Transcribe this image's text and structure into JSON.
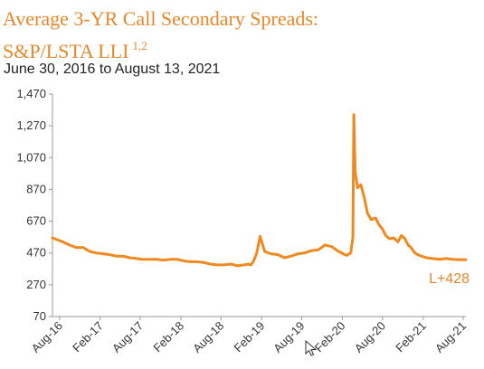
{
  "title": {
    "line1": "Average 3-YR Call Secondary Spreads:",
    "line2": "S&P/LSTA LLI",
    "superscript": "1,2"
  },
  "subtitle": "June 30, 2016 to August 13, 2021",
  "colors": {
    "series": "#f0891f",
    "title": "#e8862a",
    "axis": "#999999",
    "text": "#333333"
  },
  "chart_data": {
    "type": "line",
    "title": "Average 3-YR Call Secondary Spreads: S&P/LSTA LLI 1,2",
    "subtitle": "June 30, 2016 to August 13, 2021",
    "xlabel": "",
    "ylabel": "",
    "ylim": [
      70,
      1470
    ],
    "yticks": [
      70,
      270,
      470,
      670,
      870,
      1070,
      1270,
      1470
    ],
    "ytick_labels": [
      "70",
      "270",
      "470",
      "670",
      "870",
      "1,070",
      "1,270",
      "1,470"
    ],
    "xlim": [
      "2016-06-30",
      "2021-08-13"
    ],
    "xtick_labels": [
      "Aug-16",
      "Feb-17",
      "Aug-17",
      "Feb-18",
      "Aug-18",
      "Feb-19",
      "Aug-19",
      "Feb-20",
      "Aug-20",
      "Feb-21",
      "Aug-21"
    ],
    "xtick_dates": [
      "2016-08-01",
      "2017-02-01",
      "2017-08-01",
      "2018-02-01",
      "2018-08-01",
      "2019-02-01",
      "2019-08-01",
      "2020-02-01",
      "2020-08-01",
      "2021-02-01",
      "2021-08-01"
    ],
    "grid": false,
    "end_label": "L+428",
    "series": [
      {
        "color": "#f0891f",
        "x": [
          "2016-06-30",
          "2016-08-15",
          "2016-09-15",
          "2016-10-15",
          "2016-11-15",
          "2016-12-15",
          "2017-01-15",
          "2017-02-15",
          "2017-03-15",
          "2017-04-15",
          "2017-05-15",
          "2017-06-15",
          "2017-07-15",
          "2017-08-15",
          "2017-09-15",
          "2017-10-15",
          "2017-11-15",
          "2017-12-15",
          "2018-01-15",
          "2018-02-15",
          "2018-03-15",
          "2018-04-15",
          "2018-05-15",
          "2018-06-15",
          "2018-07-15",
          "2018-08-15",
          "2018-09-15",
          "2018-10-15",
          "2018-11-15",
          "2018-12-01",
          "2018-12-15",
          "2018-12-27",
          "2019-01-10",
          "2019-01-25",
          "2019-02-15",
          "2019-03-15",
          "2019-04-15",
          "2019-05-15",
          "2019-06-15",
          "2019-07-15",
          "2019-08-15",
          "2019-09-15",
          "2019-10-15",
          "2019-11-15",
          "2019-12-15",
          "2020-01-15",
          "2020-02-20",
          "2020-03-10",
          "2020-03-20",
          "2020-03-24",
          "2020-03-30",
          "2020-04-10",
          "2020-04-25",
          "2020-05-10",
          "2020-05-25",
          "2020-06-10",
          "2020-07-01",
          "2020-07-15",
          "2020-08-01",
          "2020-08-15",
          "2020-09-01",
          "2020-09-20",
          "2020-10-10",
          "2020-10-25",
          "2020-11-10",
          "2020-11-25",
          "2020-12-10",
          "2020-12-25",
          "2021-01-15",
          "2021-02-15",
          "2021-03-15",
          "2021-04-15",
          "2021-05-15",
          "2021-06-15",
          "2021-07-15",
          "2021-08-13"
        ],
        "y": [
          565,
          540,
          520,
          505,
          505,
          480,
          470,
          465,
          460,
          450,
          450,
          440,
          435,
          430,
          430,
          430,
          425,
          430,
          430,
          420,
          415,
          415,
          410,
          400,
          395,
          395,
          400,
          390,
          395,
          400,
          395,
          420,
          470,
          575,
          480,
          465,
          460,
          440,
          450,
          465,
          470,
          485,
          490,
          520,
          510,
          480,
          455,
          470,
          570,
          1340,
          980,
          880,
          900,
          820,
          720,
          680,
          690,
          650,
          620,
          580,
          560,
          565,
          540,
          580,
          560,
          520,
          500,
          470,
          455,
          440,
          435,
          430,
          435,
          430,
          428,
          428
        ]
      }
    ]
  }
}
